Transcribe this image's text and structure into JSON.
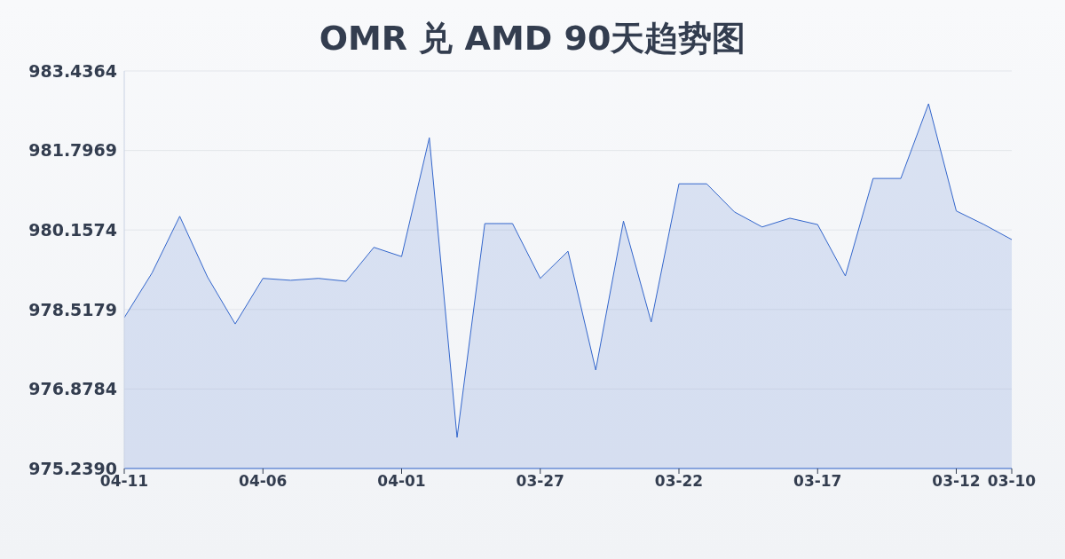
{
  "chart_data": {
    "type": "area",
    "title": "OMR 兑 AMD 90天趋势图",
    "categories": [
      "04-11",
      null,
      null,
      null,
      null,
      "04-06",
      null,
      null,
      null,
      null,
      "04-01",
      null,
      null,
      null,
      null,
      "03-27",
      null,
      null,
      null,
      null,
      "03-22",
      null,
      null,
      null,
      null,
      "03-17",
      null,
      null,
      null,
      null,
      "03-12",
      null,
      "03-10"
    ],
    "series": [
      {
        "color": "#3366cc",
        "values": [
          978.35,
          979.27,
          980.44,
          979.19,
          978.22,
          979.16,
          979.12,
          979.16,
          979.1,
          979.8,
          979.61,
          982.06,
          975.88,
          980.29,
          980.29,
          979.16,
          979.72,
          977.27,
          980.34,
          978.26,
          981.11,
          981.11,
          980.53,
          980.22,
          980.4,
          980.27,
          979.21,
          981.22,
          981.22,
          982.76,
          980.55,
          980.27,
          979.96
        ]
      }
    ],
    "ylim": [
      975.239,
      983.4364
    ],
    "yticks": [
      {
        "value": 975.239,
        "label": "975.2390"
      },
      {
        "value": 976.8784,
        "label": "976.8784"
      },
      {
        "value": 978.5179,
        "label": "978.5179"
      },
      {
        "value": 980.1574,
        "label": "980.1574"
      },
      {
        "value": 981.7969,
        "label": "981.7969"
      },
      {
        "value": 983.4364,
        "label": "983.4364"
      }
    ],
    "grid": "y",
    "legend": false
  }
}
